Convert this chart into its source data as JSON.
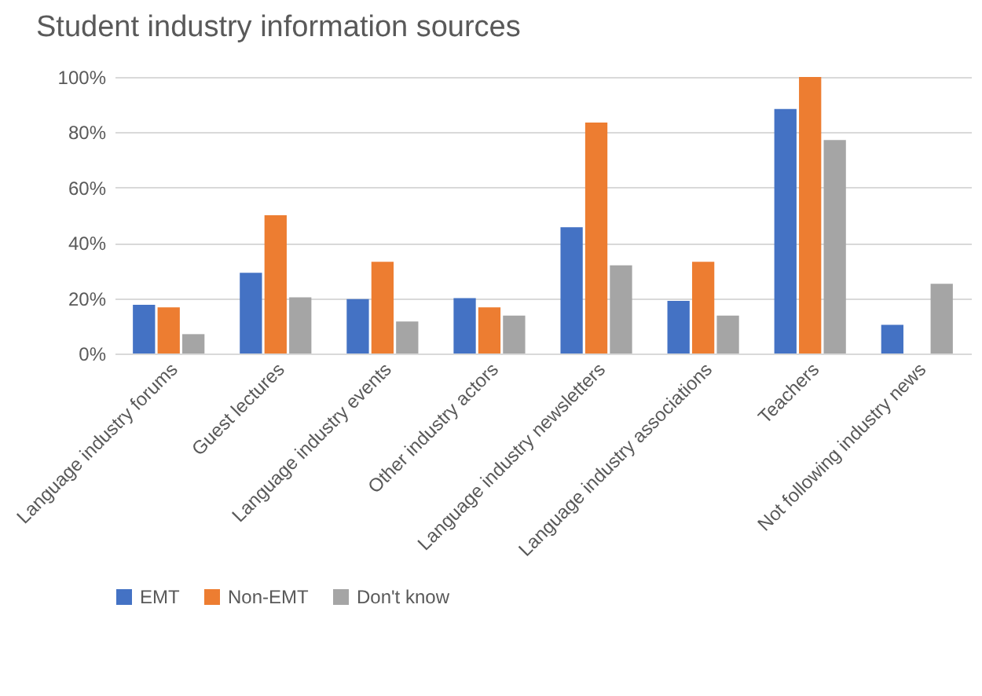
{
  "chart_data": {
    "type": "bar",
    "title": "Student industry information sources",
    "categories": [
      "Language industry forums",
      "Guest lectures",
      "Language industry events",
      "Other industry actors",
      "Language industry newsletters",
      "Language industry associations",
      "Teachers",
      "Not following industry news"
    ],
    "series": [
      {
        "name": "EMT",
        "color": "#4472c4",
        "values": [
          17.6,
          29.2,
          19.7,
          20,
          45.7,
          19,
          88.4,
          10.4
        ]
      },
      {
        "name": "Non-EMT",
        "color": "#ed7d31",
        "values": [
          16.7,
          50,
          33.2,
          16.7,
          83.5,
          33.2,
          100,
          0
        ]
      },
      {
        "name": "Don't know",
        "color": "#a5a5a5",
        "values": [
          7,
          20.3,
          11.6,
          13.7,
          31.9,
          13.7,
          77.2,
          25.2
        ]
      }
    ],
    "ylim": [
      0,
      100
    ],
    "yticks": [
      {
        "value": 0,
        "label": "0%"
      },
      {
        "value": 20,
        "label": "20%"
      },
      {
        "value": 40,
        "label": "40%"
      },
      {
        "value": 60,
        "label": "60%"
      },
      {
        "value": 80,
        "label": "80%"
      },
      {
        "value": 100,
        "label": "100%"
      }
    ],
    "grid": "y",
    "legend": "bottom"
  }
}
